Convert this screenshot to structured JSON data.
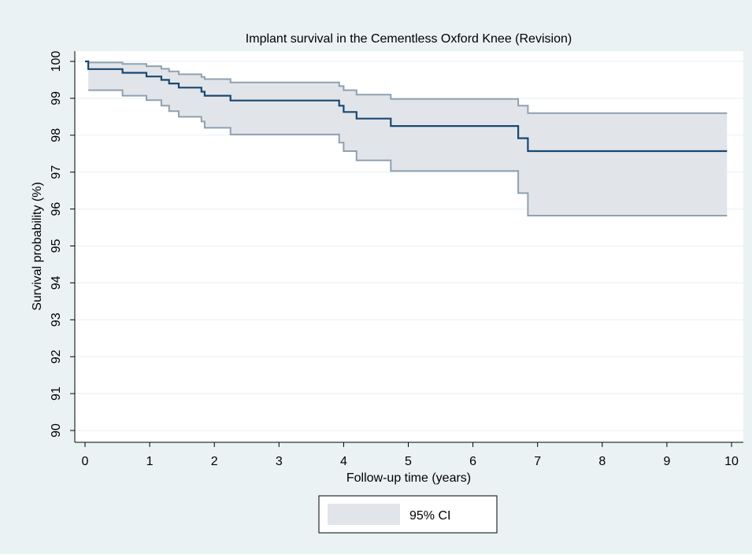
{
  "chart_data": {
    "type": "line",
    "title": "Implant survival in the Cementless Oxford Knee (Revision)",
    "xlabel": "Follow-up time (years)",
    "ylabel": "Survival probability (%)",
    "xlim": [
      0,
      10
    ],
    "ylim": [
      90,
      100
    ],
    "xticks": [
      "0",
      "1",
      "2",
      "3",
      "4",
      "5",
      "6",
      "7",
      "8",
      "9",
      "10"
    ],
    "yticks": [
      "90",
      "91",
      "92",
      "93",
      "94",
      "95",
      "96",
      "97",
      "98",
      "99",
      "100"
    ],
    "grid": true,
    "legend": {
      "position": "bottom-center",
      "entries": [
        "95% CI"
      ]
    },
    "colors": {
      "outer_background": "#eaf2f3",
      "plot_background": "#ffffff",
      "grid": "#eaf2f3",
      "survival_line": "#1a476f",
      "ci_band": "#e1e5ea",
      "ci_line": "#90a0b0"
    },
    "series": [
      {
        "role": "estimate",
        "x": [
          0,
          0.05,
          0.58,
          0.95,
          1.18,
          1.3,
          1.45,
          1.8,
          1.85,
          2.25,
          3.93,
          4.0,
          4.2,
          4.73,
          6.7,
          6.85,
          9.93
        ],
        "y": [
          100,
          99.79,
          99.69,
          99.59,
          99.5,
          99.4,
          99.29,
          99.18,
          99.07,
          98.94,
          98.8,
          98.63,
          98.45,
          98.25,
          97.92,
          97.57,
          97.57
        ]
      }
    ],
    "ci": {
      "name": "95% CI",
      "x": [
        0.05,
        0.58,
        0.95,
        1.18,
        1.3,
        1.45,
        1.8,
        1.85,
        2.25,
        3.93,
        4.0,
        4.2,
        4.73,
        6.7,
        6.85,
        9.93
      ],
      "lower": [
        99.22,
        99.07,
        98.95,
        98.8,
        98.65,
        98.5,
        98.37,
        98.2,
        98.02,
        97.8,
        97.57,
        97.32,
        97.03,
        96.43,
        95.82,
        95.82
      ],
      "upper": [
        99.97,
        99.93,
        99.87,
        99.8,
        99.73,
        99.65,
        99.58,
        99.52,
        99.43,
        99.33,
        99.22,
        99.1,
        98.98,
        98.8,
        98.6,
        98.6
      ]
    }
  }
}
